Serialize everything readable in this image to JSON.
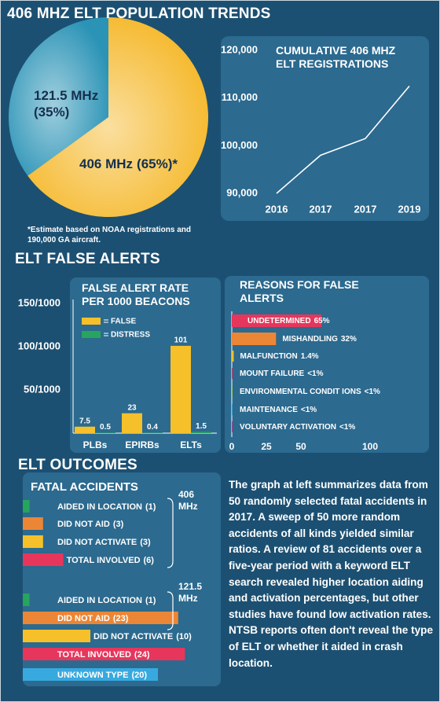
{
  "header": {
    "title": "406 MHZ ELT POPULATION TRENDS"
  },
  "sections": {
    "false_alerts": "ELT FALSE ALERTS",
    "outcomes": "ELT OUTCOMES"
  },
  "paragraph": "The graph at left summarizes data from 50 randomly selected fatal accidents in 2017. A sweep of 50 more random accidents of all kinds yielded similar ratios. A review of 81 accidents over a five-year period with a keyword ELT search revealed higher location aiding and activation percentages, but other studies have found low activation rates. NTSB reports often don't reveal the type of ELT or whether it aided in crash location.",
  "chart_data": [
    {
      "type": "pie",
      "categories": [
        "121.5 MHz",
        "406 MHz"
      ],
      "values": [
        35,
        65
      ],
      "value_labels": [
        "(35%)",
        "(65%)*"
      ],
      "colors": [
        "#2a93b6",
        "#f5b82a"
      ],
      "footnote": "*Estimate based on NOAA registrations and 190,000 GA aircraft."
    },
    {
      "type": "line",
      "title": "CUMULATIVE 406 MHZ ELT REGISTRATIONS",
      "categories": [
        "2016",
        "2017",
        "2017",
        "2019"
      ],
      "values": [
        90000,
        98000,
        101500,
        112500
      ],
      "color": "#ffffff",
      "ylim": [
        90000,
        120000
      ],
      "yticks": [
        {
          "value": 90000,
          "label": "90,000"
        },
        {
          "value": 100000,
          "label": "100,000"
        },
        {
          "value": 110000,
          "label": "110,000"
        },
        {
          "value": 120000,
          "label": "120,000"
        }
      ]
    },
    {
      "type": "bar",
      "title": "FALSE ALERT RATE PER 1000 BEACONS",
      "categories": [
        "PLBs",
        "EPIRBs",
        "ELTs"
      ],
      "series": [
        {
          "name": "FALSE",
          "color": "#f5c02a",
          "values": [
            7.5,
            23,
            101
          ]
        },
        {
          "name": "DISTRESS",
          "color": "#27a45e",
          "values": [
            0.5,
            0.4,
            1.5
          ]
        }
      ],
      "ylim": [
        0,
        150
      ],
      "yticks": [
        {
          "value": 50,
          "label": "50/1000"
        },
        {
          "value": 100,
          "label": "100/1000"
        },
        {
          "value": 150,
          "label": "150/1000"
        }
      ]
    },
    {
      "type": "bar",
      "orientation": "horizontal",
      "title": "REASONS FOR FALSE ALERTS",
      "categories": [
        "UNDETERMINED",
        "MISHANDLING",
        "MALFUNCTION",
        "MOUNT FAILURE",
        "ENVIRONMENTAL CONDIT IONS",
        "MAINTENANCE",
        "VOLUNTARY ACTIVATION"
      ],
      "values": [
        65,
        32,
        1.4,
        0.5,
        0.5,
        0.5,
        0.5
      ],
      "value_labels": [
        "65%",
        "32%",
        "1.4%",
        "<1%",
        "<1%",
        "<1%",
        "<1%"
      ],
      "colors": [
        "#e7365c",
        "#eb8636",
        "#f5c02a",
        "#dc3468",
        "#9ccc6a",
        "#42a8df",
        "#c1388f"
      ],
      "xlim": [
        0,
        100
      ],
      "xticks": [
        0,
        25,
        50,
        100
      ]
    },
    {
      "type": "bar",
      "orientation": "horizontal",
      "title": "FATAL ACCIDENTS",
      "groups": [
        {
          "label": "406 MHz",
          "categories": [
            "AIDED IN LOCATION",
            "DID NOT AID",
            "DID NOT ACTIVATE",
            "TOTAL INVOLVED"
          ],
          "values": [
            1,
            3,
            3,
            6
          ],
          "value_labels": [
            "(1)",
            "(3)",
            "(3)",
            "(6)"
          ],
          "colors": [
            "#27a45e",
            "#eb8636",
            "#f5c02a",
            "#e7365c"
          ]
        },
        {
          "label": "121.5 MHz",
          "categories": [
            "AIDED IN LOCATION",
            "DID NOT AID",
            "DID NOT ACTIVATE",
            "TOTAL INVOLVED",
            "UNKNOWN TYPE"
          ],
          "values": [
            1,
            23,
            10,
            24,
            20
          ],
          "value_labels": [
            "(1)",
            "(23)",
            "(10)",
            "(24)",
            "(20)"
          ],
          "colors": [
            "#27a45e",
            "#eb8636",
            "#f5c02a",
            "#e7365c",
            "#38a9df"
          ]
        }
      ]
    }
  ]
}
